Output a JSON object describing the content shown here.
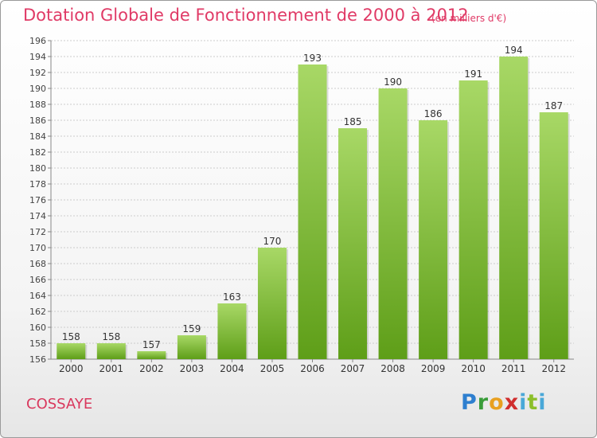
{
  "title": "Dotation Globale de Fonctionnement de 2000 à 2012",
  "unit": "(en milliers d'€)",
  "commune": "COSSAYE",
  "logo": {
    "p": "P",
    "r": "r",
    "o": "o",
    "x": "x",
    "i1": "i",
    "t": "t",
    "i2": "i"
  },
  "colors": {
    "bar_light": "#a8d866",
    "bar_dark": "#5e9e18",
    "title": "#e03a66",
    "grid": "#cccccc"
  },
  "chart_data": {
    "type": "bar",
    "title": "Dotation Globale de Fonctionnement de 2000 à 2012",
    "categories": [
      "2000",
      "2001",
      "2002",
      "2003",
      "2004",
      "2005",
      "2006",
      "2007",
      "2008",
      "2009",
      "2010",
      "2011",
      "2012"
    ],
    "values": [
      158,
      158,
      157,
      159,
      163,
      170,
      193,
      185,
      190,
      186,
      191,
      194,
      187
    ],
    "ylim": [
      156,
      196
    ],
    "yticks": [
      "156",
      "158",
      "160",
      "162",
      "164",
      "166",
      "168",
      "170",
      "172",
      "174",
      "176",
      "178",
      "180",
      "182",
      "184",
      "186",
      "188",
      "190",
      "192",
      "194",
      "196"
    ],
    "grid": true,
    "xlabel": "",
    "ylabel": ""
  }
}
